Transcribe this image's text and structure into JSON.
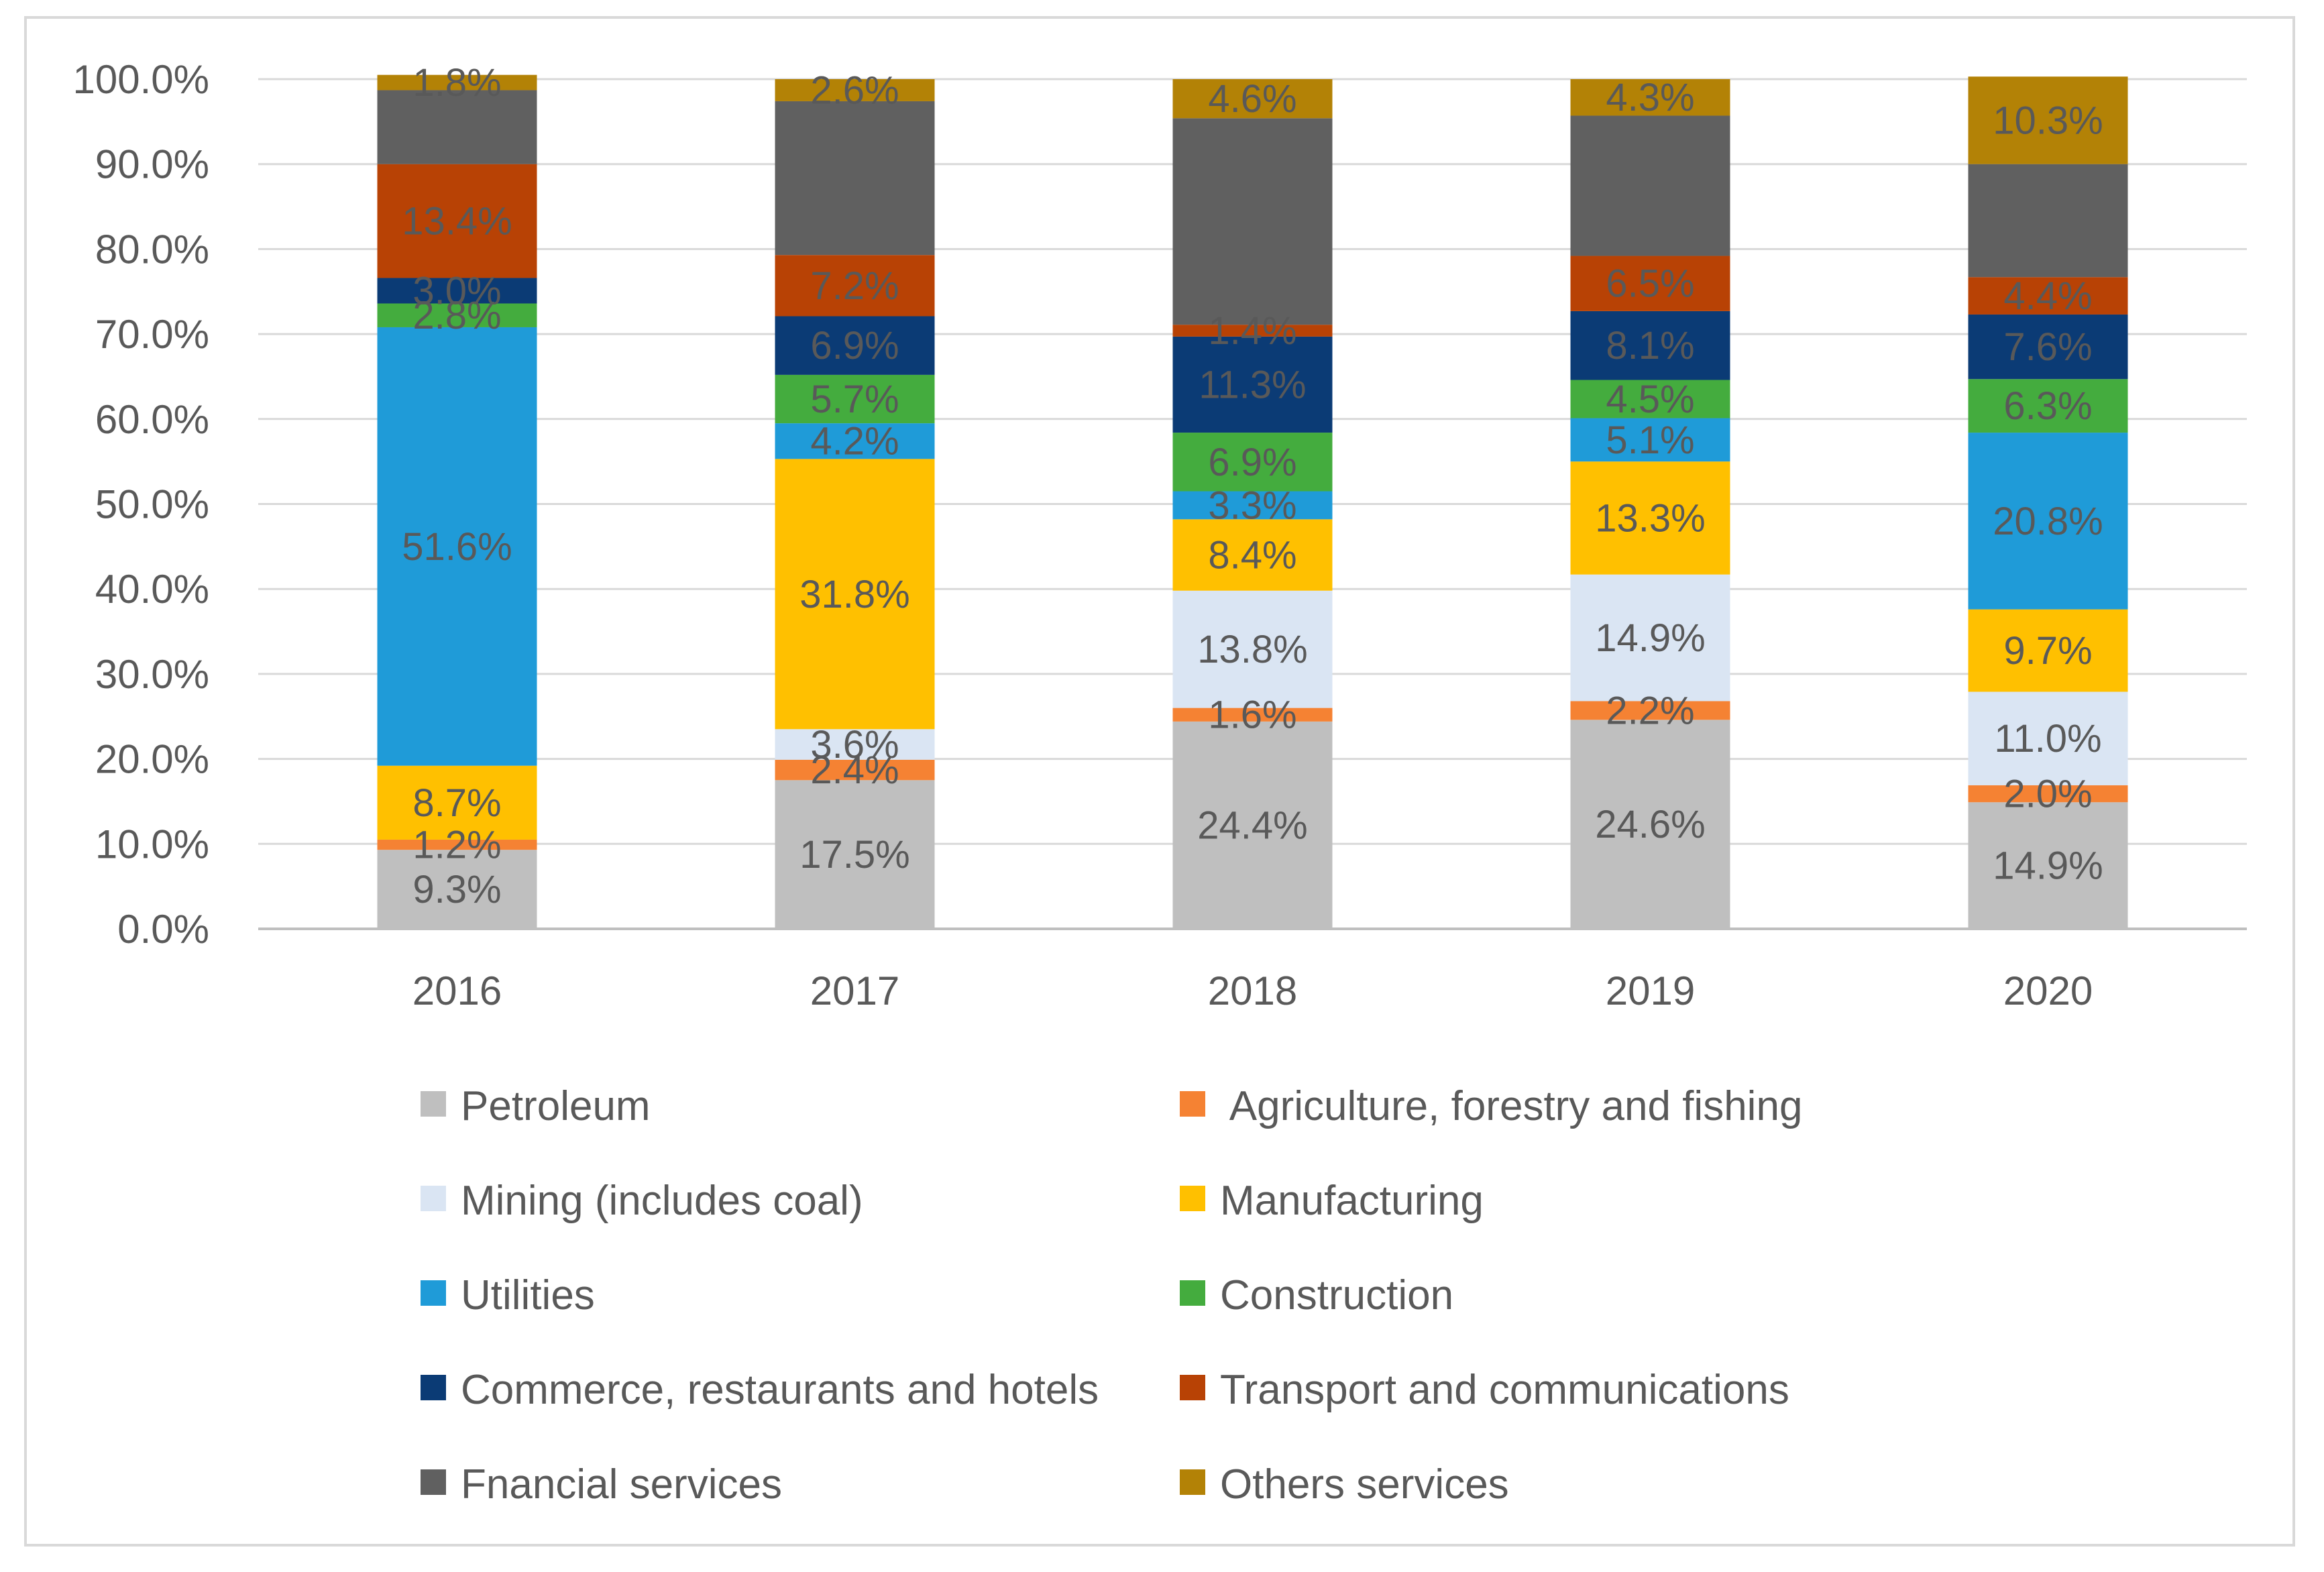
{
  "chart_data": {
    "type": "bar",
    "stacked": true,
    "percent_stacked": true,
    "categories": [
      "2016",
      "2017",
      "2018",
      "2019",
      "2020"
    ],
    "ylim": [
      0,
      100
    ],
    "y_ticks": [
      "0.0%",
      "10.0%",
      "20.0%",
      "30.0%",
      "40.0%",
      "50.0%",
      "60.0%",
      "70.0%",
      "80.0%",
      "90.0%",
      "100.0%"
    ],
    "grid": true,
    "legend_position": "bottom",
    "series": [
      {
        "name": "Petroleum",
        "color": "#bfbfbf",
        "values": [
          9.3,
          17.5,
          24.4,
          24.6,
          14.9
        ],
        "labels": [
          "9.3%",
          "17.5%",
          "24.4%",
          "24.6%",
          "14.9%"
        ]
      },
      {
        "name": " Agriculture, forestry and fishing",
        "color": "#f58233",
        "values": [
          1.2,
          2.4,
          1.6,
          2.2,
          2.0
        ],
        "labels": [
          "1.2%",
          "2.4%",
          "1.6%",
          "2.2%",
          "2.0%"
        ]
      },
      {
        "name": "Mining (includes coal)",
        "color": "#dae5f3",
        "values": [
          0,
          3.6,
          13.8,
          14.9,
          11.0
        ],
        "labels": [
          "",
          "3.6%",
          "13.8%",
          "14.9%",
          "11.0%"
        ]
      },
      {
        "name": "Manufacturing",
        "color": "#ffc000",
        "values": [
          8.7,
          31.8,
          8.4,
          13.3,
          9.7
        ],
        "labels": [
          "8.7%",
          "31.8%",
          "8.4%",
          "13.3%",
          "9.7%"
        ]
      },
      {
        "name": "Utilities",
        "color": "#1f9bd8",
        "values": [
          51.6,
          4.2,
          3.3,
          5.1,
          20.8
        ],
        "labels": [
          "51.6%",
          "4.2%",
          "3.3%",
          "5.1%",
          "20.8%"
        ]
      },
      {
        "name": "Construction",
        "color": "#44ac3e",
        "values": [
          2.8,
          5.7,
          6.9,
          4.5,
          6.3
        ],
        "labels": [
          "2.8%",
          "5.7%",
          "6.9%",
          "4.5%",
          "6.3%"
        ]
      },
      {
        "name": "Commerce, restaurants and hotels",
        "color": "#0b3b75",
        "values": [
          3.0,
          6.9,
          11.3,
          8.1,
          7.6
        ],
        "labels": [
          "3.0%",
          "6.9%",
          "11.3%",
          "8.1%",
          "7.6%"
        ]
      },
      {
        "name": "Transport and communications",
        "color": "#b84205",
        "values": [
          13.4,
          7.2,
          1.4,
          6.5,
          4.4
        ],
        "labels": [
          "13.4%",
          "7.2%",
          "1.4%",
          "6.5%",
          "4.4%"
        ]
      },
      {
        "name": "Fnancial services",
        "color": "#606060",
        "values": [
          8.7,
          18.1,
          24.3,
          16.5,
          13.3
        ],
        "labels": [
          "",
          "",
          "",
          "",
          ""
        ]
      },
      {
        "name": "Others services",
        "color": "#b38206",
        "values": [
          1.8,
          2.6,
          4.6,
          4.3,
          10.3
        ],
        "labels": [
          "1.8%",
          "2.6%",
          "4.6%",
          "4.3%",
          "10.3%"
        ]
      }
    ]
  }
}
